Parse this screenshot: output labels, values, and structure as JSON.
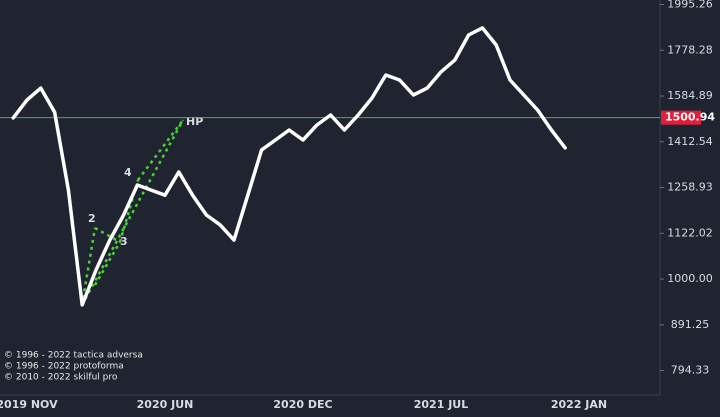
{
  "chart_data": {
    "type": "line",
    "categories": [
      null,
      "2019 NOV",
      null,
      null,
      null,
      null,
      null,
      null,
      null,
      null,
      null,
      "2020 JUN",
      null,
      null,
      null,
      null,
      null,
      null,
      null,
      null,
      null,
      "2020 DEC",
      null,
      null,
      null,
      null,
      null,
      null,
      null,
      null,
      null,
      "2021 JUL",
      null,
      null,
      null,
      null,
      null,
      null,
      null,
      null,
      null,
      "2022 JAN"
    ],
    "values": [
      1500,
      1569,
      1617,
      1522,
      1251,
      937,
      1023,
      1103,
      1175,
      1267,
      1251,
      1235,
      1309,
      1235,
      1175,
      1146,
      1103,
      1235,
      1384,
      1419,
      1455,
      1419,
      1473,
      1511,
      1455,
      1511,
      1577,
      1671,
      1650,
      1589,
      1617,
      1684,
      1735,
      1848,
      1881,
      1802,
      1650,
      1589,
      1530,
      1455,
      1391,
      null
    ],
    "color": "#ffffff",
    "log_scale": true,
    "ylim": [
      747,
      2018
    ],
    "yticks": [
      794.33,
      891.25,
      {
        "value": 1000,
        "label": "1000.00"
      },
      1122.02,
      1258.93,
      1412.54,
      1584.89,
      1778.28,
      1995.26
    ],
    "hline": {
      "value": 1500.94,
      "color": "#4caf50",
      "label_color": "#e0203a"
    },
    "annotations": [
      "2",
      "3",
      "4",
      "HP"
    ],
    "notes": [
      "© 1996 - 2022 tactica adversa",
      "© 1996 - 2022 protoforma",
      "© 2010 - 2022 skilful pro"
    ]
  }
}
